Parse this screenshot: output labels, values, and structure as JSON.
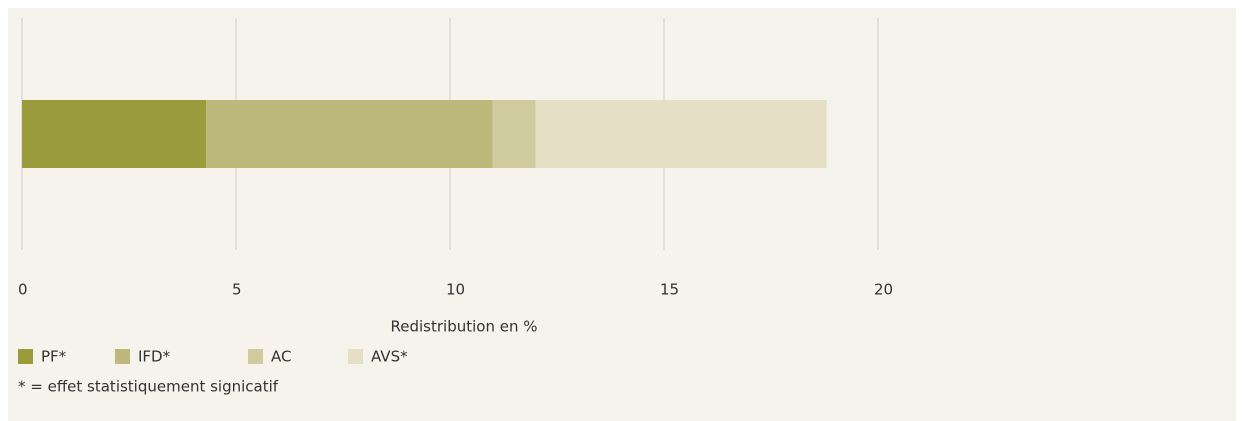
{
  "chart_data": {
    "type": "stacked-bar-horizontal",
    "categories": [
      null
    ],
    "series": [
      {
        "name": "PF*",
        "color": "#9a9b3a",
        "values": [
          4.3
        ]
      },
      {
        "name": "IFD*",
        "color": "#bcb97a",
        "values": [
          6.7
        ]
      },
      {
        "name": "AC",
        "color": "#d0cb9e",
        "values": [
          1.0
        ]
      },
      {
        "name": "AVS*",
        "color": "#e4dfc5",
        "values": [
          6.8
        ]
      }
    ],
    "xlabel": "Redistribution en %",
    "xlim": [
      0,
      28
    ],
    "xticks": [
      0,
      5,
      10,
      15,
      20
    ],
    "grid": true,
    "legend": "bottom-left",
    "note": "* = effet statistiquement signicatif"
  }
}
